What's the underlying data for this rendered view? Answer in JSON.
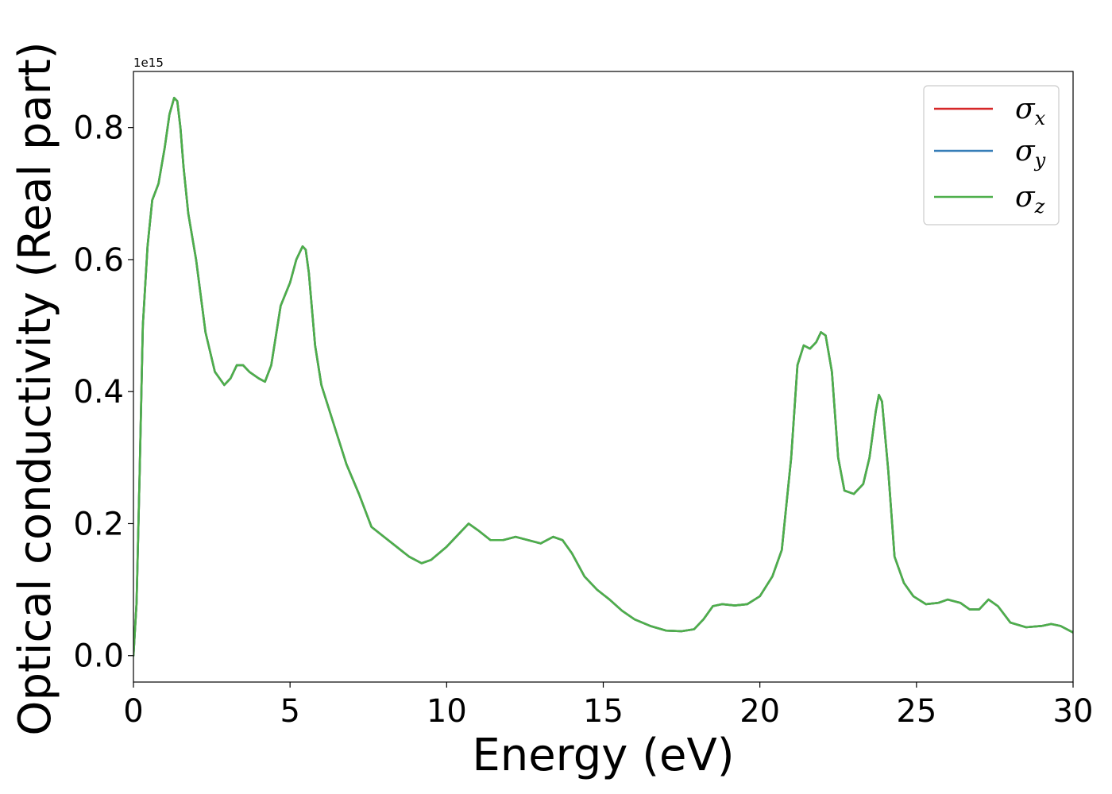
{
  "chart_data": {
    "type": "line",
    "xlabel": "Energy (eV)",
    "ylabel": "Optical conductivity (Real part)",
    "y_offset_label": "1e15",
    "xlim": [
      0,
      30
    ],
    "ylim": [
      -0.04,
      0.885
    ],
    "x_ticks": [
      0,
      5,
      10,
      15,
      20,
      25,
      30
    ],
    "x_tick_labels": [
      "0",
      "5",
      "10",
      "15",
      "20",
      "25",
      "30"
    ],
    "y_ticks": [
      0.0,
      0.2,
      0.4,
      0.6,
      0.8
    ],
    "y_tick_labels": [
      "0.0",
      "0.2",
      "0.4",
      "0.6",
      "0.8"
    ],
    "grid": false,
    "legend_position": "top-right",
    "series": [
      {
        "name": "σx",
        "symbol": "σ",
        "subscript": "x",
        "color": "#d62728",
        "x": [
          0,
          0.1,
          0.2,
          0.3,
          0.45,
          0.6,
          0.8,
          1.0,
          1.15,
          1.3,
          1.4,
          1.5,
          1.6,
          1.75,
          2.0,
          2.3,
          2.6,
          2.9,
          3.1,
          3.3,
          3.5,
          3.7,
          4.0,
          4.2,
          4.4,
          4.7,
          5.0,
          5.2,
          5.4,
          5.5,
          5.6,
          5.8,
          6.0,
          6.4,
          6.8,
          7.2,
          7.6,
          8.0,
          8.4,
          8.8,
          9.2,
          9.5,
          10.0,
          10.4,
          10.7,
          11.0,
          11.4,
          11.8,
          12.2,
          12.6,
          13.0,
          13.4,
          13.7,
          14.0,
          14.4,
          14.8,
          15.2,
          15.6,
          16.0,
          16.5,
          17.0,
          17.5,
          17.9,
          18.2,
          18.5,
          18.8,
          19.2,
          19.6,
          20.0,
          20.4,
          20.7,
          21.0,
          21.2,
          21.4,
          21.6,
          21.8,
          21.95,
          22.1,
          22.3,
          22.5,
          22.7,
          23.0,
          23.3,
          23.5,
          23.7,
          23.8,
          23.9,
          24.1,
          24.3,
          24.6,
          24.9,
          25.3,
          25.7,
          26.0,
          26.4,
          26.7,
          27.0,
          27.3,
          27.6,
          28.0,
          28.5,
          29.0,
          29.3,
          29.6,
          30.0
        ],
        "y": [
          0.0,
          0.08,
          0.28,
          0.5,
          0.62,
          0.69,
          0.715,
          0.77,
          0.82,
          0.845,
          0.84,
          0.8,
          0.74,
          0.67,
          0.6,
          0.49,
          0.43,
          0.41,
          0.42,
          0.44,
          0.44,
          0.43,
          0.42,
          0.415,
          0.44,
          0.53,
          0.565,
          0.6,
          0.62,
          0.615,
          0.58,
          0.47,
          0.41,
          0.35,
          0.29,
          0.245,
          0.195,
          0.18,
          0.165,
          0.15,
          0.14,
          0.145,
          0.165,
          0.185,
          0.2,
          0.19,
          0.175,
          0.175,
          0.18,
          0.175,
          0.17,
          0.18,
          0.175,
          0.155,
          0.12,
          0.1,
          0.085,
          0.068,
          0.055,
          0.045,
          0.038,
          0.037,
          0.04,
          0.055,
          0.075,
          0.078,
          0.076,
          0.078,
          0.09,
          0.12,
          0.16,
          0.3,
          0.44,
          0.47,
          0.465,
          0.475,
          0.49,
          0.485,
          0.43,
          0.3,
          0.25,
          0.245,
          0.26,
          0.3,
          0.37,
          0.395,
          0.385,
          0.28,
          0.15,
          0.11,
          0.09,
          0.078,
          0.08,
          0.085,
          0.08,
          0.07,
          0.07,
          0.085,
          0.075,
          0.05,
          0.043,
          0.045,
          0.048,
          0.045,
          0.035
        ]
      },
      {
        "name": "σy",
        "symbol": "σ",
        "subscript": "y",
        "color": "#377eb8",
        "x": [
          0,
          0.1,
          0.2,
          0.3,
          0.45,
          0.6,
          0.8,
          1.0,
          1.15,
          1.3,
          1.4,
          1.5,
          1.6,
          1.75,
          2.0,
          2.3,
          2.6,
          2.9,
          3.1,
          3.3,
          3.5,
          3.7,
          4.0,
          4.2,
          4.4,
          4.7,
          5.0,
          5.2,
          5.4,
          5.5,
          5.6,
          5.8,
          6.0,
          6.4,
          6.8,
          7.2,
          7.6,
          8.0,
          8.4,
          8.8,
          9.2,
          9.5,
          10.0,
          10.4,
          10.7,
          11.0,
          11.4,
          11.8,
          12.2,
          12.6,
          13.0,
          13.4,
          13.7,
          14.0,
          14.4,
          14.8,
          15.2,
          15.6,
          16.0,
          16.5,
          17.0,
          17.5,
          17.9,
          18.2,
          18.5,
          18.8,
          19.2,
          19.6,
          20.0,
          20.4,
          20.7,
          21.0,
          21.2,
          21.4,
          21.6,
          21.8,
          21.95,
          22.1,
          22.3,
          22.5,
          22.7,
          23.0,
          23.3,
          23.5,
          23.7,
          23.8,
          23.9,
          24.1,
          24.3,
          24.6,
          24.9,
          25.3,
          25.7,
          26.0,
          26.4,
          26.7,
          27.0,
          27.3,
          27.6,
          28.0,
          28.5,
          29.0,
          29.3,
          29.6,
          30.0
        ],
        "y": [
          0.0,
          0.08,
          0.28,
          0.5,
          0.62,
          0.69,
          0.715,
          0.77,
          0.82,
          0.845,
          0.84,
          0.8,
          0.74,
          0.67,
          0.6,
          0.49,
          0.43,
          0.41,
          0.42,
          0.44,
          0.44,
          0.43,
          0.42,
          0.415,
          0.44,
          0.53,
          0.565,
          0.6,
          0.62,
          0.615,
          0.58,
          0.47,
          0.41,
          0.35,
          0.29,
          0.245,
          0.195,
          0.18,
          0.165,
          0.15,
          0.14,
          0.145,
          0.165,
          0.185,
          0.2,
          0.19,
          0.175,
          0.175,
          0.18,
          0.175,
          0.17,
          0.18,
          0.175,
          0.155,
          0.12,
          0.1,
          0.085,
          0.068,
          0.055,
          0.045,
          0.038,
          0.037,
          0.04,
          0.055,
          0.075,
          0.078,
          0.076,
          0.078,
          0.09,
          0.12,
          0.16,
          0.3,
          0.44,
          0.47,
          0.465,
          0.475,
          0.49,
          0.485,
          0.43,
          0.3,
          0.25,
          0.245,
          0.26,
          0.3,
          0.37,
          0.395,
          0.385,
          0.28,
          0.15,
          0.11,
          0.09,
          0.078,
          0.08,
          0.085,
          0.08,
          0.07,
          0.07,
          0.085,
          0.075,
          0.05,
          0.043,
          0.045,
          0.048,
          0.045,
          0.035
        ]
      },
      {
        "name": "σz",
        "symbol": "σ",
        "subscript": "z",
        "color": "#4daf4a",
        "x": [
          0,
          0.1,
          0.2,
          0.3,
          0.45,
          0.6,
          0.8,
          1.0,
          1.15,
          1.3,
          1.4,
          1.5,
          1.6,
          1.75,
          2.0,
          2.3,
          2.6,
          2.9,
          3.1,
          3.3,
          3.5,
          3.7,
          4.0,
          4.2,
          4.4,
          4.7,
          5.0,
          5.2,
          5.4,
          5.5,
          5.6,
          5.8,
          6.0,
          6.4,
          6.8,
          7.2,
          7.6,
          8.0,
          8.4,
          8.8,
          9.2,
          9.5,
          10.0,
          10.4,
          10.7,
          11.0,
          11.4,
          11.8,
          12.2,
          12.6,
          13.0,
          13.4,
          13.7,
          14.0,
          14.4,
          14.8,
          15.2,
          15.6,
          16.0,
          16.5,
          17.0,
          17.5,
          17.9,
          18.2,
          18.5,
          18.8,
          19.2,
          19.6,
          20.0,
          20.4,
          20.7,
          21.0,
          21.2,
          21.4,
          21.6,
          21.8,
          21.95,
          22.1,
          22.3,
          22.5,
          22.7,
          23.0,
          23.3,
          23.5,
          23.7,
          23.8,
          23.9,
          24.1,
          24.3,
          24.6,
          24.9,
          25.3,
          25.7,
          26.0,
          26.4,
          26.7,
          27.0,
          27.3,
          27.6,
          28.0,
          28.5,
          29.0,
          29.3,
          29.6,
          30.0
        ],
        "y": [
          0.0,
          0.08,
          0.28,
          0.5,
          0.62,
          0.69,
          0.715,
          0.77,
          0.82,
          0.845,
          0.84,
          0.8,
          0.74,
          0.67,
          0.6,
          0.49,
          0.43,
          0.41,
          0.42,
          0.44,
          0.44,
          0.43,
          0.42,
          0.415,
          0.44,
          0.53,
          0.565,
          0.6,
          0.62,
          0.615,
          0.58,
          0.47,
          0.41,
          0.35,
          0.29,
          0.245,
          0.195,
          0.18,
          0.165,
          0.15,
          0.14,
          0.145,
          0.165,
          0.185,
          0.2,
          0.19,
          0.175,
          0.175,
          0.18,
          0.175,
          0.17,
          0.18,
          0.175,
          0.155,
          0.12,
          0.1,
          0.085,
          0.068,
          0.055,
          0.045,
          0.038,
          0.037,
          0.04,
          0.055,
          0.075,
          0.078,
          0.076,
          0.078,
          0.09,
          0.12,
          0.16,
          0.3,
          0.44,
          0.47,
          0.465,
          0.475,
          0.49,
          0.485,
          0.43,
          0.3,
          0.25,
          0.245,
          0.26,
          0.3,
          0.37,
          0.395,
          0.385,
          0.28,
          0.15,
          0.11,
          0.09,
          0.078,
          0.08,
          0.085,
          0.08,
          0.07,
          0.07,
          0.085,
          0.075,
          0.05,
          0.043,
          0.045,
          0.048,
          0.045,
          0.035
        ]
      }
    ]
  }
}
